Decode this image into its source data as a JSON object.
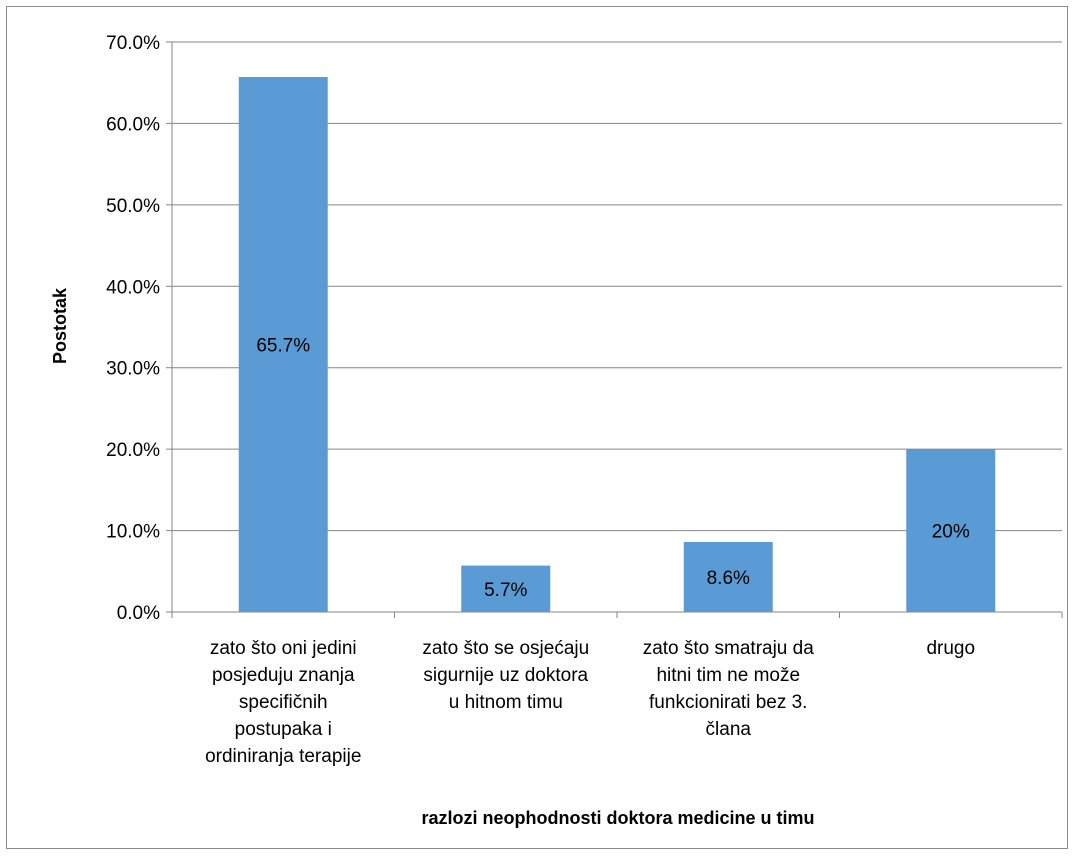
{
  "chart_data": {
    "type": "bar",
    "categories": [
      [
        "zato što oni jedini",
        "posjeduju znanja",
        "specifičnih",
        "postupaka i",
        "ordiniranja terapije"
      ],
      [
        "zato što se osjećaju",
        "sigurnije uz doktora",
        "u hitnom timu"
      ],
      [
        "zato što smatraju da",
        "hitni tim ne može",
        "funkcionirati bez 3.",
        "člana"
      ],
      [
        "drugo"
      ]
    ],
    "values": [
      65.7,
      5.7,
      8.6,
      20
    ],
    "data_labels": [
      "65.7%",
      "5.7%",
      "8.6%",
      "20%"
    ],
    "ylabel": "Postotak",
    "xlabel": "razlozi neophodnosti doktora medicine u timu",
    "ylim": [
      0,
      70
    ],
    "yticks": [
      "0.0%",
      "10.0%",
      "20.0%",
      "30.0%",
      "40.0%",
      "50.0%",
      "60.0%",
      "70.0%"
    ],
    "bar_color": "#5b9bd5",
    "grid": true
  }
}
